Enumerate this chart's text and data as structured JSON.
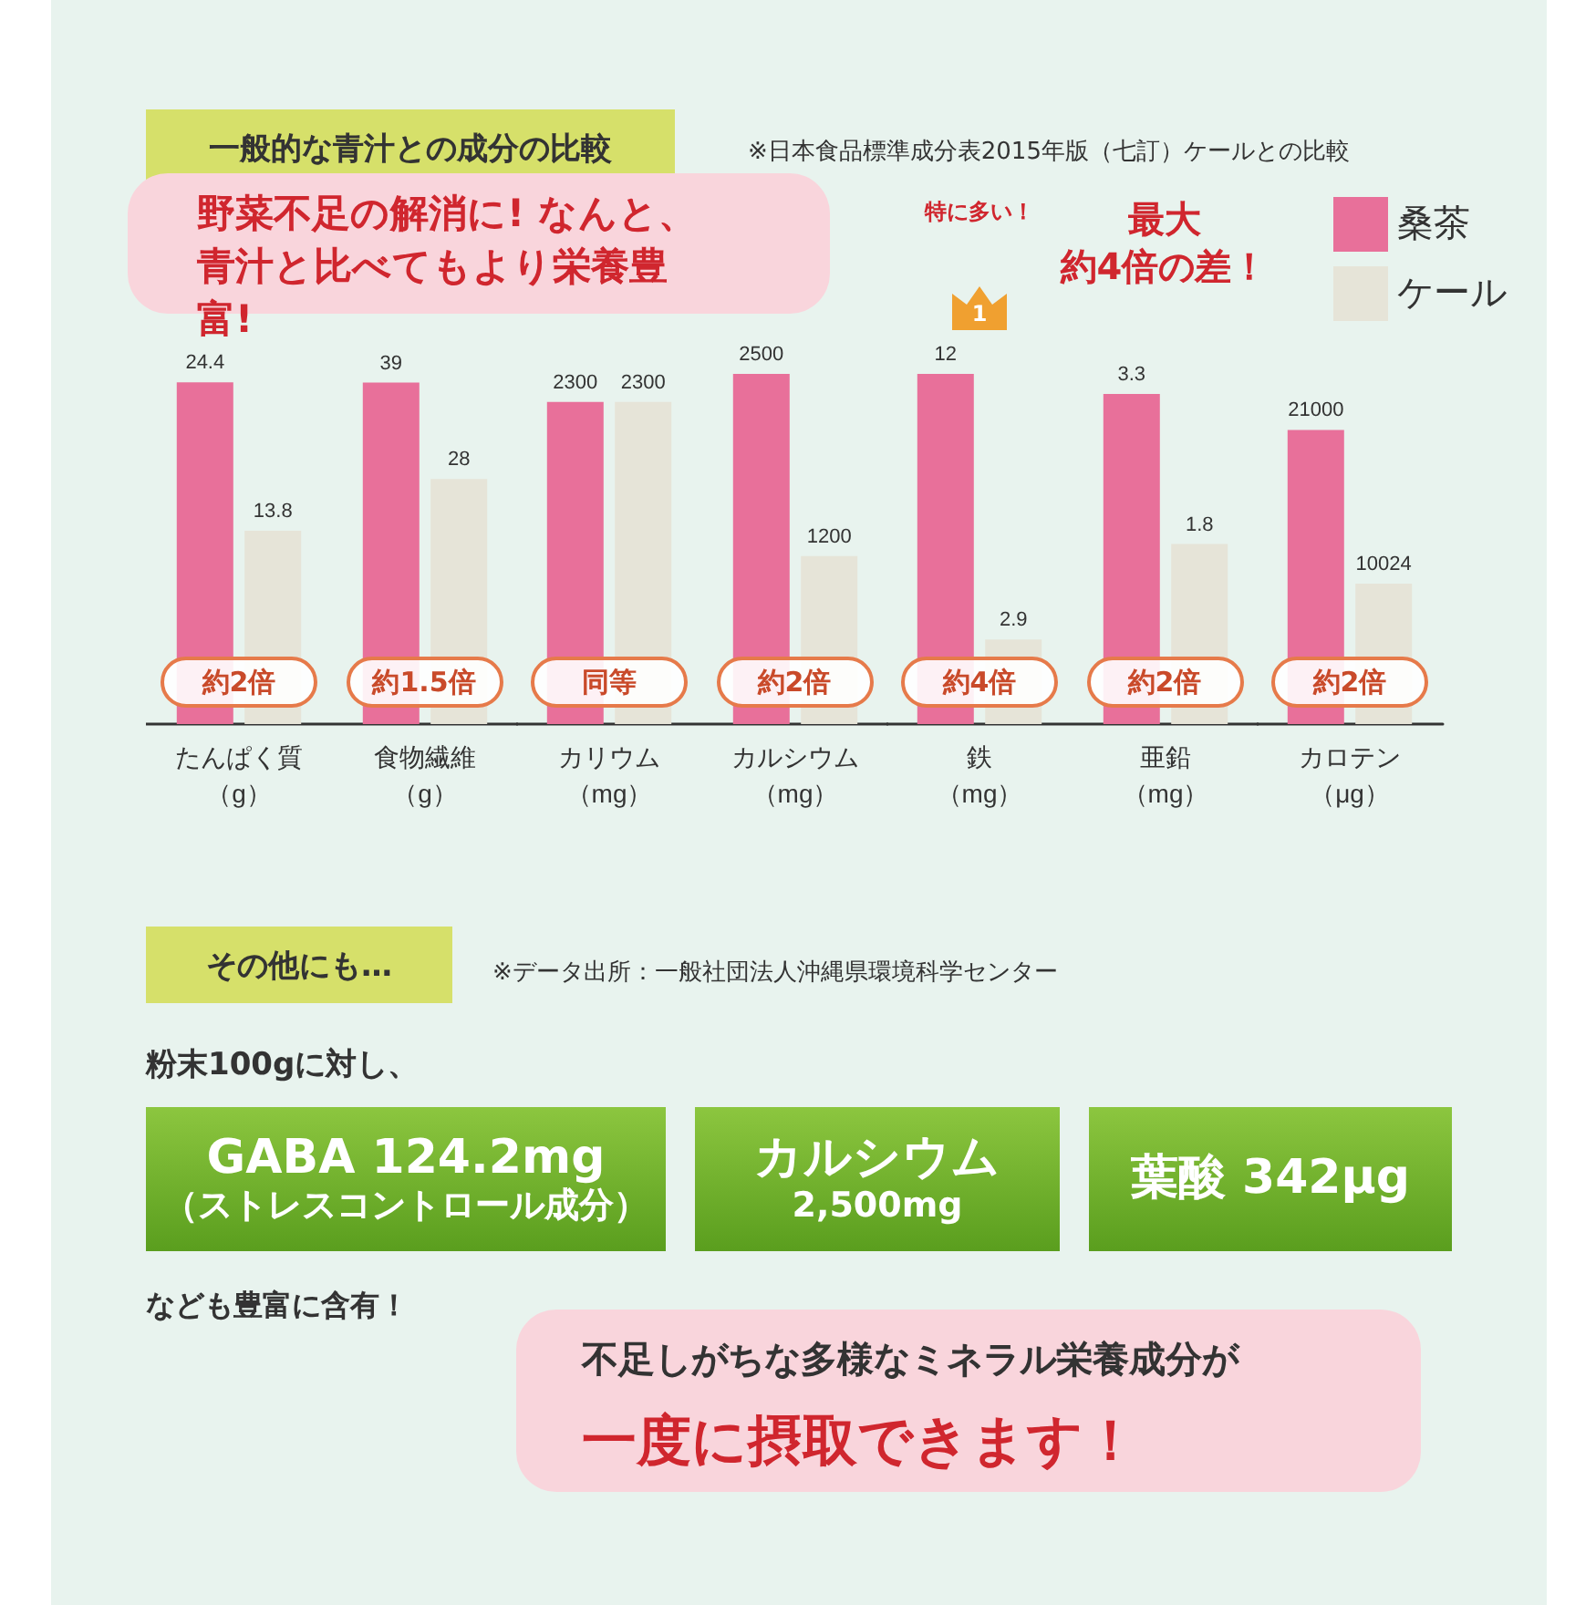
{
  "chart_data": [
    {
      "type": "other",
      "title": "一般的な青汁との成分の比較",
      "subtitle": "※日本食品標準成分表2015年版（七訂）ケールとの比較",
      "annotations": [
        "野菜不足の解消に! なんと、青汁と比べてもより栄養豊富!"
      ]
    },
    {
      "type": "bar",
      "categories": [
        "たんぱく質（g）"
      ],
      "data_labels": true,
      "annotations": [
        "約2倍"
      ],
      "series": [
        {
          "color": "#e8709a",
          "values": [
            24.4
          ]
        },
        {
          "color": "#e6e4d8",
          "values": [
            13.8
          ]
        }
      ]
    },
    {
      "type": "bar",
      "categories": [
        "食物繊維（g）"
      ],
      "data_labels": true,
      "annotations": [
        "約1.5倍"
      ],
      "series": [
        {
          "color": "#e8709a",
          "values": [
            39
          ]
        },
        {
          "color": "#e6e4d8",
          "values": [
            28
          ]
        }
      ]
    },
    {
      "type": "bar",
      "categories": [
        "カリウム（mg）"
      ],
      "data_labels": true,
      "annotations": [
        "同等"
      ],
      "series": [
        {
          "color": "#e8709a",
          "values": [
            2300
          ]
        },
        {
          "color": "#e6e4d8",
          "values": [
            2300
          ]
        }
      ]
    },
    {
      "type": "bar",
      "categories": [
        "カルシウム（mg）"
      ],
      "data_labels": true,
      "annotations": [
        "約2倍"
      ],
      "series": [
        {
          "color": "#e8709a",
          "values": [
            2500
          ]
        },
        {
          "color": "#e6e4d8",
          "values": [
            1200
          ]
        }
      ]
    },
    {
      "type": "bar",
      "categories": [
        "鉄（mg）"
      ],
      "data_labels": true,
      "annotations": [
        "約4倍",
        "特に多い！",
        {
          "text": "1",
          "x": "鉄（mg）",
          "y": 12
        }
      ],
      "series": [
        {
          "color": "#e8709a",
          "values": [
            12
          ]
        },
        {
          "color": "#e6e4d8",
          "values": [
            2.9
          ]
        }
      ]
    },
    {
      "type": "bar",
      "categories": [
        "亜鉛（mg）"
      ],
      "data_labels": true,
      "annotations": [
        "約2倍",
        "最大",
        "約4倍の差！"
      ],
      "series": [
        {
          "color": "#e8709a",
          "values": [
            3.3
          ]
        },
        {
          "color": "#e6e4d8",
          "values": [
            1.8
          ]
        }
      ]
    },
    {
      "type": "bar",
      "categories": [
        "カロテン（μg）"
      ],
      "data_labels": true,
      "annotations": [
        "約2倍"
      ],
      "legend": "top right",
      "series": [
        {
          "name": "桑茶",
          "color": "#e8709a",
          "values": [
            21000
          ]
        },
        {
          "name": "ケール",
          "color": "#e6e4d8",
          "values": [
            10024
          ]
        }
      ]
    },
    {
      "type": "other",
      "title": "その他にも…",
      "subtitle": "※データ出所：一般社団法人沖縄県環境科学センター",
      "annotations": [
        "粉末100gに対し、",
        "GABA 124.2mg\n（ストレスコントロール成分）",
        "カルシウム\n2,500mg",
        "葉酸 342μg",
        "なども豊富に含有！",
        "不足しがちな多様なミネラル栄養成分が",
        "一度に摂取できます！"
      ]
    }
  ]
}
